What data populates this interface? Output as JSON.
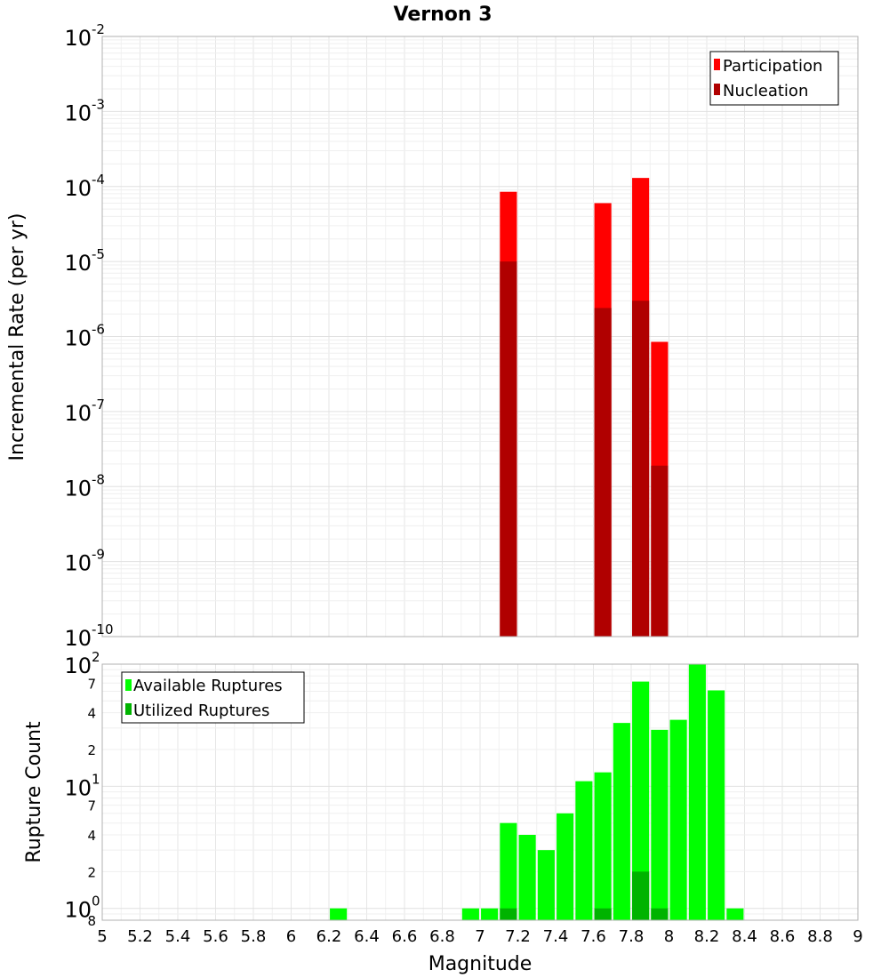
{
  "figure_title": "Vernon 3",
  "x_axis_label": "Magnitude",
  "chart_data": [
    {
      "type": "bar",
      "title": "Vernon 3",
      "ylabel": "Incremental Rate (per yr)",
      "xlabel": "Magnitude",
      "yscale": "log",
      "xlim": [
        5,
        9
      ],
      "ylim": [
        1e-10,
        0.01
      ],
      "y_tick_exponents": [
        -10,
        -9,
        -8,
        -7,
        -6,
        -5,
        -4,
        -3,
        -2
      ],
      "y_tick_base": "10",
      "bar_width": 0.09,
      "legend_position": "top-right",
      "series": [
        {
          "name": "Participation",
          "color": "#ff0000",
          "points": [
            {
              "x": 7.15,
              "y": 8.5e-05
            },
            {
              "x": 7.65,
              "y": 6e-05
            },
            {
              "x": 7.85,
              "y": 0.00013
            },
            {
              "x": 7.95,
              "y": 8.5e-07
            }
          ]
        },
        {
          "name": "Nucleation",
          "color": "#b00000",
          "points": [
            {
              "x": 7.15,
              "y": 1e-05
            },
            {
              "x": 7.65,
              "y": 2.4e-06
            },
            {
              "x": 7.85,
              "y": 3e-06
            },
            {
              "x": 7.95,
              "y": 1.9e-08
            }
          ]
        }
      ]
    },
    {
      "type": "bar",
      "ylabel": "Rupture Count",
      "xlabel": "Magnitude",
      "yscale": "log",
      "xlim": [
        5,
        9
      ],
      "ylim": [
        0.8,
        100
      ],
      "x_ticks": [
        "5",
        "5.2",
        "5.4",
        "5.6",
        "5.8",
        "6",
        "6.2",
        "6.4",
        "6.6",
        "6.8",
        "7",
        "7.2",
        "7.4",
        "7.6",
        "7.8",
        "8",
        "8.2",
        "8.4",
        "8.6",
        "8.8",
        "9"
      ],
      "y_major_ticks": [
        {
          "value": 1,
          "base": "10",
          "exp": "0"
        },
        {
          "value": 10,
          "base": "10",
          "exp": "1"
        },
        {
          "value": 100,
          "base": "10",
          "exp": "2"
        }
      ],
      "y_minor_ticks": [
        {
          "value": 0.8,
          "label": "8"
        },
        {
          "value": 2,
          "label": "2"
        },
        {
          "value": 4,
          "label": "4"
        },
        {
          "value": 7,
          "label": "7"
        },
        {
          "value": 20,
          "label": "2"
        },
        {
          "value": 40,
          "label": "4"
        },
        {
          "value": 70,
          "label": "7"
        }
      ],
      "bar_width": 0.09,
      "legend_position": "top-left",
      "series": [
        {
          "name": "Available Ruptures",
          "color": "#00ff00",
          "points": [
            {
              "x": 6.25,
              "y": 1
            },
            {
              "x": 6.95,
              "y": 1
            },
            {
              "x": 7.05,
              "y": 1
            },
            {
              "x": 7.15,
              "y": 5
            },
            {
              "x": 7.25,
              "y": 4
            },
            {
              "x": 7.35,
              "y": 3
            },
            {
              "x": 7.45,
              "y": 6
            },
            {
              "x": 7.55,
              "y": 11
            },
            {
              "x": 7.65,
              "y": 13
            },
            {
              "x": 7.75,
              "y": 33
            },
            {
              "x": 7.85,
              "y": 72
            },
            {
              "x": 7.95,
              "y": 29
            },
            {
              "x": 8.05,
              "y": 35
            },
            {
              "x": 8.15,
              "y": 100
            },
            {
              "x": 8.25,
              "y": 61
            },
            {
              "x": 8.35,
              "y": 1
            }
          ]
        },
        {
          "name": "Utilized Ruptures",
          "color": "#00b300",
          "points": [
            {
              "x": 7.15,
              "y": 1
            },
            {
              "x": 7.65,
              "y": 1
            },
            {
              "x": 7.85,
              "y": 2
            },
            {
              "x": 7.95,
              "y": 1
            }
          ]
        }
      ]
    }
  ]
}
